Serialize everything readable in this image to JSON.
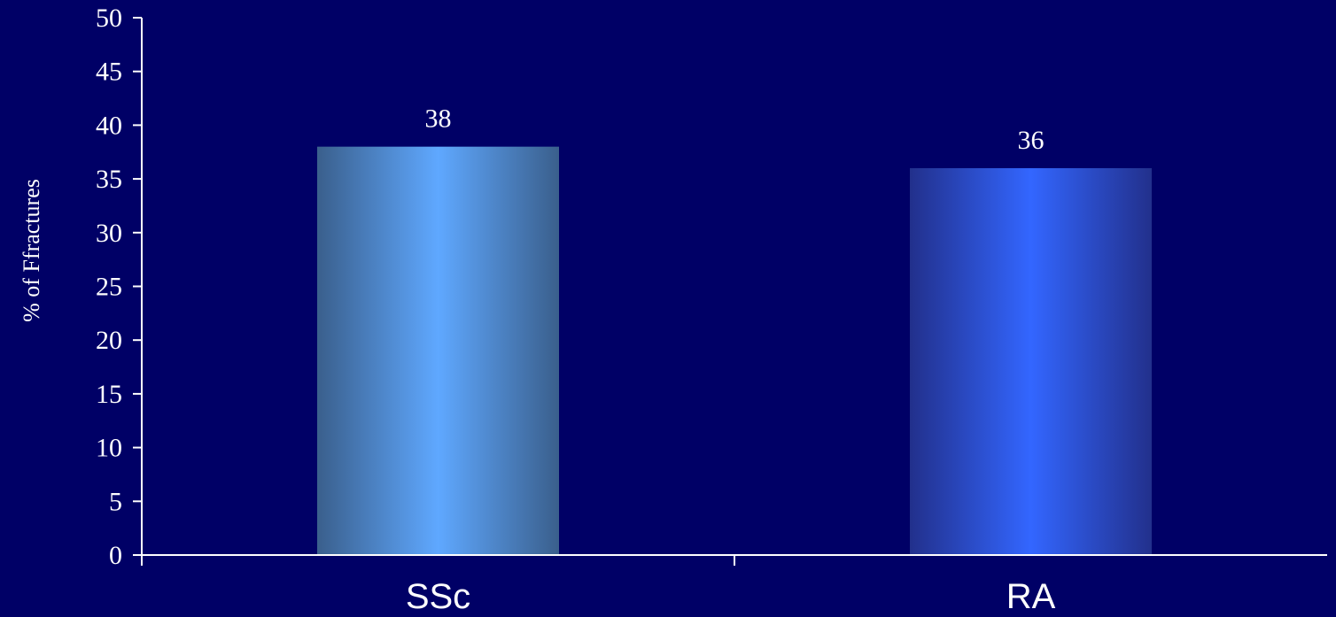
{
  "chart_data": {
    "type": "bar",
    "categories": [
      "SSc",
      "RA"
    ],
    "values": [
      38,
      36
    ],
    "data_labels": [
      "38",
      "36"
    ],
    "title": "",
    "xlabel": "",
    "ylabel": "% of  Ffractures",
    "ylim": [
      0,
      50
    ],
    "yticks": [
      0,
      5,
      10,
      15,
      20,
      25,
      30,
      35,
      40,
      45,
      50
    ],
    "grid": false,
    "legend": "none"
  },
  "colors": {
    "background": "#000066",
    "axis": "#ffffff",
    "text": "#ffffff",
    "bars": [
      {
        "edge": "#3A5F8C",
        "center": "#5FA8FF"
      },
      {
        "edge": "#22308C",
        "center": "#3366FF"
      }
    ]
  }
}
